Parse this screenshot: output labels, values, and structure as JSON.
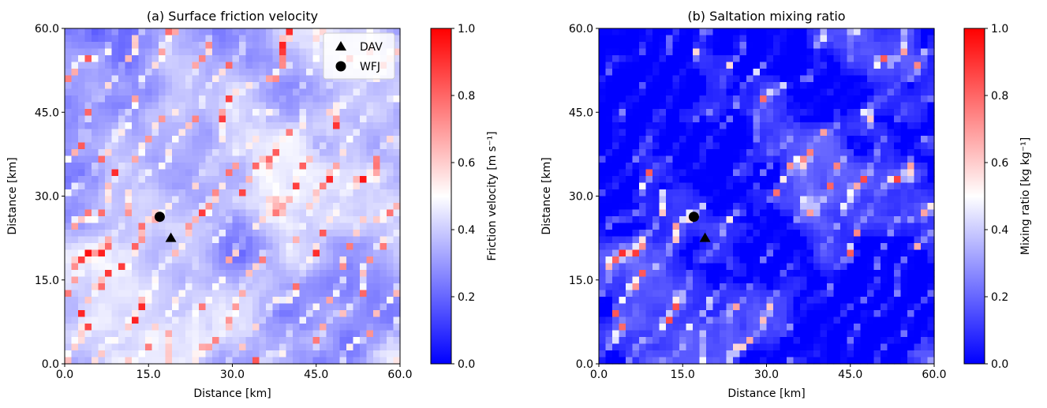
{
  "chart_data": [
    {
      "type": "heatmap",
      "title": "(a) Surface friction velocity",
      "xlabel": "Distance [km]",
      "ylabel": "Distance [km]",
      "xlim": [
        0,
        60
      ],
      "ylim": [
        0,
        60
      ],
      "xticks": [
        "0.0",
        "15.0",
        "30.0",
        "45.0",
        "60.0"
      ],
      "yticks": [
        "0.0",
        "15.0",
        "30.0",
        "45.0",
        "60.0"
      ],
      "colormap": "bwr",
      "colorbar": {
        "label": "Friction velocity [m s⁻¹]",
        "range": [
          0,
          1
        ],
        "ticks": [
          "0.0",
          "0.2",
          "0.4",
          "0.6",
          "0.8",
          "1.0"
        ]
      },
      "markers": [
        {
          "name": "DAV",
          "shape": "triangle",
          "x": 19.0,
          "y": 22.5
        },
        {
          "name": "WFJ",
          "shape": "circle",
          "x": 17.0,
          "y": 26.3
        }
      ],
      "legend": {
        "position": "top-right",
        "entries": [
          "DAV",
          "WFJ"
        ]
      },
      "field_character": "mostly 0.2–0.5, ridge-aligned streaks reaching 0.8–1.0"
    },
    {
      "type": "heatmap",
      "title": "(b) Saltation mixing ratio",
      "xlabel": "Distance [km]",
      "ylabel": "Distance [km]",
      "xlim": [
        0,
        60
      ],
      "ylim": [
        0,
        60
      ],
      "xticks": [
        "0.0",
        "15.0",
        "30.0",
        "45.0",
        "60.0"
      ],
      "yticks": [
        "0.0",
        "15.0",
        "30.0",
        "45.0",
        "60.0"
      ],
      "colormap": "bwr",
      "colorbar": {
        "label": "Mixing ratio [kg kg⁻¹]",
        "range": [
          0,
          1
        ],
        "ticks": [
          "0.0",
          "0.2",
          "0.4",
          "0.6",
          "0.8",
          "1.0"
        ]
      },
      "markers": [
        {
          "name": "DAV",
          "shape": "triangle",
          "x": 19.0,
          "y": 22.5
        },
        {
          "name": "WFJ",
          "shape": "circle",
          "x": 17.0,
          "y": 26.3
        }
      ],
      "field_character": "mostly 0.0, patchy streaks of 0.3–0.8 along ridges"
    }
  ],
  "colors": {
    "low": "#0000ff",
    "mid": "#ffffff",
    "high": "#ff0000",
    "marker": "#000000"
  }
}
